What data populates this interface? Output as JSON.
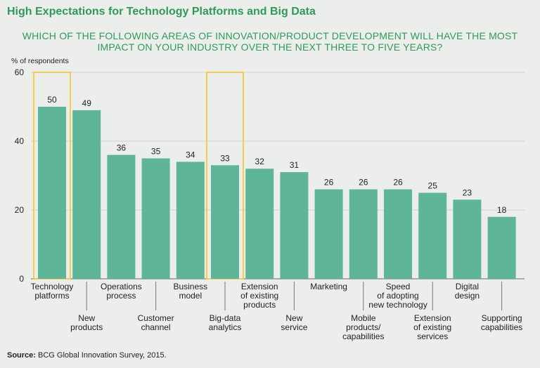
{
  "title": "High Expectations for Technology Platforms and Big Data",
  "subtitle_line1": "WHICH OF THE FOLLOWING AREAS OF INNOVATION/PRODUCT DEVELOPMENT WILL HAVE THE MOST",
  "subtitle_line2": "IMPACT ON YOUR INDUSTRY OVER THE NEXT THREE TO FIVE YEARS?",
  "source_label": "Source:",
  "source_text": "BCG Global Innovation Survey, 2015.",
  "colors": {
    "bar": "#5fb597",
    "highlight": "#f5c623",
    "title": "#2e9a5a",
    "grid": "#cfd3d0"
  },
  "chart_data": {
    "type": "bar",
    "ylabel": "% of respondents",
    "ylim": [
      0,
      60
    ],
    "yticks": [
      0,
      20,
      40,
      60
    ],
    "grid": true,
    "categories": [
      [
        "Technology",
        "platforms"
      ],
      [
        "New",
        "products"
      ],
      [
        "Operations",
        "process"
      ],
      [
        "Customer",
        "channel"
      ],
      [
        "Business",
        "model"
      ],
      [
        "Big-data",
        "analytics"
      ],
      [
        "Extension",
        "of existing",
        "products"
      ],
      [
        "New",
        "service"
      ],
      [
        "Marketing"
      ],
      [
        "Mobile",
        "products/",
        "capabilities"
      ],
      [
        "Speed",
        "of adopting",
        "new technology"
      ],
      [
        "Extension",
        "of existing",
        "services"
      ],
      [
        "Digital",
        "design"
      ],
      [
        "Supporting",
        "capabilities"
      ]
    ],
    "values": [
      50,
      49,
      36,
      35,
      34,
      33,
      32,
      31,
      26,
      26,
      26,
      25,
      23,
      18
    ],
    "highlighted": [
      "Technology platforms",
      "Big-data analytics"
    ]
  }
}
